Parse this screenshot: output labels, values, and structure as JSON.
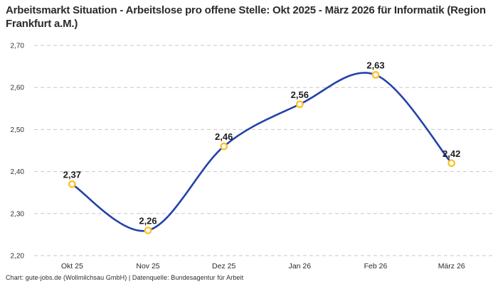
{
  "title": "Arbeitsmarkt Situation - Arbeitslose pro offene Stelle: Okt 2025 - März 2026 für Informatik (Region Frankfurt a.M.)",
  "footer": "Chart: gute-jobs.de (Wollmilchsau GmbH) | Datenquelle: Bundesagentur für Arbeit",
  "chart_data": {
    "type": "line",
    "title": "Arbeitsmarkt Situation - Arbeitslose pro offene Stelle: Okt 2025 - März 2026 für Informatik (Region Frankfurt a.M.)",
    "categories": [
      "Okt 25",
      "Nov 25",
      "Dez 25",
      "Jan 26",
      "Feb 26",
      "März 26"
    ],
    "values": [
      2.37,
      2.26,
      2.46,
      2.56,
      2.63,
      2.42
    ],
    "value_labels": [
      "2,37",
      "2,26",
      "2,46",
      "2,56",
      "2,63",
      "2,42"
    ],
    "xlabel": "",
    "ylabel": "",
    "ylim": [
      2.2,
      2.7
    ],
    "yticks": [
      2.2,
      2.3,
      2.4,
      2.5,
      2.6,
      2.7
    ],
    "ytick_labels": [
      "2,20",
      "2,30",
      "2,40",
      "2,50",
      "2,60",
      "2,70"
    ],
    "grid": true,
    "legend": false,
    "smooth": true,
    "colors": {
      "line": "#2343a8",
      "marker_ring": "#fcc331",
      "marker_fill": "#ffffff",
      "gridline": "#c7c7c7",
      "tick_text": "#333333",
      "label_text": "#1c1c1e"
    }
  }
}
